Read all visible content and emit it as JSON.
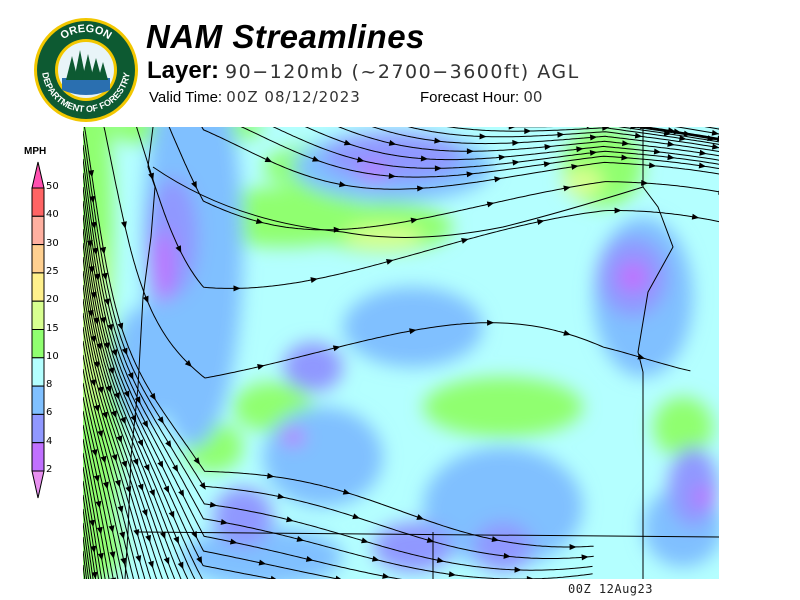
{
  "logo": {
    "text_top": "OREGON",
    "text_bottom": "DEPARTMENT OF FORESTRY"
  },
  "header": {
    "title": "NAM Streamlines",
    "layer_label": "Layer:",
    "layer_value": "90−120mb (~2700−3600ft) AGL",
    "valid_label": "Valid Time:",
    "valid_value": "00Z 08/12/2023",
    "forecast_label": "Forecast Hour:",
    "forecast_value": "00"
  },
  "legend": {
    "units": "MPH",
    "ticks": [
      "50",
      "40",
      "30",
      "25",
      "20",
      "15",
      "10",
      "8",
      "6",
      "4",
      "2"
    ],
    "colors": {
      "above_50": "#ff50b0",
      "40-50": "#ff6464",
      "30-40": "#ffb0a0",
      "25-30": "#ffd090",
      "20-25": "#fff08c",
      "15-20": "#d8ff90",
      "10-15": "#90ff70",
      "8-10": "#b4ffff",
      "6-8": "#80c0ff",
      "4-6": "#9098ff",
      "2-4": "#c070ff",
      "below_2": "#e890f0"
    }
  },
  "map": {
    "streamline_color": "#000000",
    "boundary_color": "#000000"
  },
  "footer": {
    "timestamp": "00Z 12Aug23"
  }
}
